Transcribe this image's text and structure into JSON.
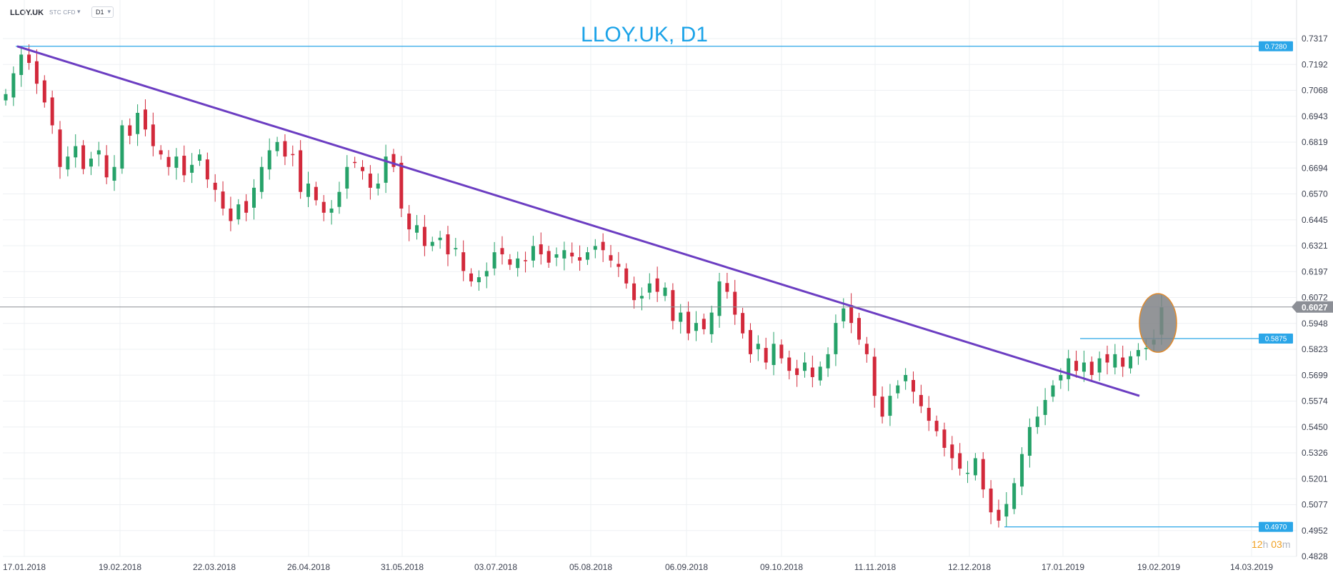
{
  "header": {
    "symbol": "LLOY.UK",
    "category": "STC CFD",
    "timeframe": "D1"
  },
  "timer": {
    "hours": "12",
    "h_unit": "h",
    "minutes": "03",
    "m_unit": "m"
  },
  "colors": {
    "up": "#26a269",
    "down": "#d2293b",
    "trend": "#6c3ec2",
    "level": "#2ba6e8",
    "title": "#1ba3e8"
  },
  "chart_data": {
    "type": "candlestick",
    "title": "LLOY.UK, D1",
    "y_ticks": [
      "0.7317",
      "0.7192",
      "0.7068",
      "0.6943",
      "0.6819",
      "0.6694",
      "0.6570",
      "0.6445",
      "0.6321",
      "0.6197",
      "0.6072",
      "0.5948",
      "0.5823",
      "0.5699",
      "0.5574",
      "0.5450",
      "0.5326",
      "0.5201",
      "0.5077",
      "0.4952",
      "0.4828"
    ],
    "ylim": [
      0.4828,
      0.7317
    ],
    "x_ticks": [
      "17.01.2018",
      "19.02.2018",
      "22.03.2018",
      "26.04.2018",
      "31.05.2018",
      "03.07.2018",
      "05.08.2018",
      "06.09.2018",
      "09.10.2018",
      "11.11.2018",
      "12.12.2018",
      "17.01.2019",
      "19.02.2019",
      "14.03.2019"
    ],
    "grid": true,
    "current_price": "0.6027",
    "levels": [
      {
        "label": "0.7280",
        "value": 0.728
      },
      {
        "label": "0.5875",
        "value": 0.5875
      },
      {
        "label": "0.4970",
        "value": 0.497
      }
    ],
    "trendline": {
      "from": {
        "date": "17.01.2018",
        "value": 0.728
      },
      "to": {
        "date": "09.02.2019",
        "value": 0.56
      }
    },
    "highlight": {
      "date": "14.02.2019",
      "value": 0.595
    },
    "closes": [
      0.705,
      0.715,
      0.724,
      0.72,
      0.71,
      0.701,
      0.69,
      0.67,
      0.675,
      0.68,
      0.669,
      0.674,
      0.678,
      0.665,
      0.67,
      0.69,
      0.685,
      0.696,
      0.688,
      0.68,
      0.676,
      0.67,
      0.675,
      0.666,
      0.671,
      0.676,
      0.664,
      0.659,
      0.65,
      0.644,
      0.652,
      0.648,
      0.66,
      0.67,
      0.678,
      0.682,
      0.675,
      0.676,
      0.658,
      0.662,
      0.654,
      0.648,
      0.65,
      0.658,
      0.67,
      0.672,
      0.668,
      0.66,
      0.662,
      0.675,
      0.67,
      0.65,
      0.64,
      0.642,
      0.632,
      0.634,
      0.636,
      0.628,
      0.631,
      0.62,
      0.615,
      0.617,
      0.62,
      0.629,
      0.628,
      0.623,
      0.626,
      0.625,
      0.632,
      0.628,
      0.624,
      0.628,
      0.63,
      0.627,
      0.625,
      0.629,
      0.632,
      0.63,
      0.625,
      0.622,
      0.614,
      0.606,
      0.608,
      0.614,
      0.61,
      0.612,
      0.596,
      0.6,
      0.59,
      0.595,
      0.592,
      0.6,
      0.615,
      0.61,
      0.599,
      0.59,
      0.58,
      0.585,
      0.576,
      0.585,
      0.578,
      0.572,
      0.57,
      0.576,
      0.569,
      0.574,
      0.58,
      0.595,
      0.602,
      0.595,
      0.587,
      0.58,
      0.56,
      0.55,
      0.56,
      0.565,
      0.57,
      0.562,
      0.555,
      0.548,
      0.543,
      0.535,
      0.53,
      0.525,
      0.523,
      0.53,
      0.515,
      0.504,
      0.5,
      0.508,
      0.518,
      0.532,
      0.545,
      0.55,
      0.558,
      0.565,
      0.57,
      0.578,
      0.572,
      0.576,
      0.57,
      0.578,
      0.576,
      0.58,
      0.574,
      0.579,
      0.582,
      0.583,
      0.587,
      0.6027
    ]
  }
}
